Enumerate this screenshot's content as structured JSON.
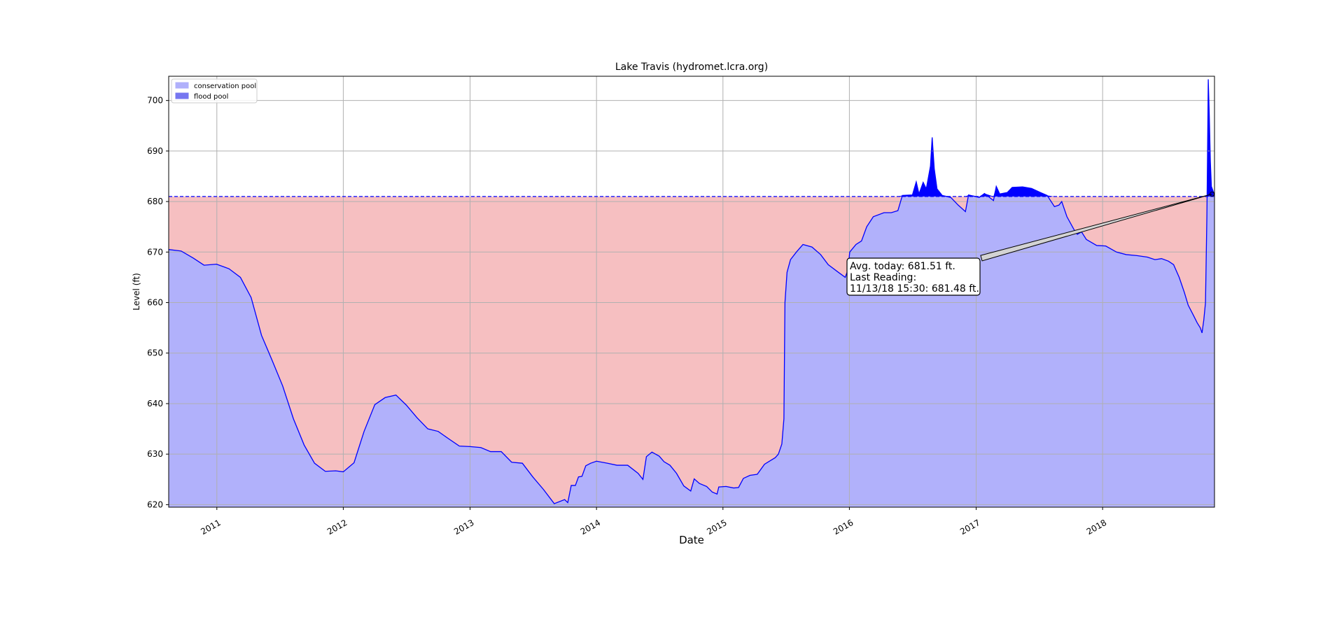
{
  "chart_data": {
    "type": "area",
    "title": "Lake Travis (hydromet.lcra.org)",
    "xlabel": "Date",
    "ylabel": "Level (ft)",
    "ylim": [
      619.5,
      704.8
    ],
    "xlim": [
      "2010-08-15",
      "2018-11-20"
    ],
    "y_ticks": [
      620,
      630,
      640,
      650,
      660,
      670,
      680,
      690,
      700
    ],
    "x_ticks": [
      "2011",
      "2012",
      "2013",
      "2014",
      "2015",
      "2016",
      "2017",
      "2018"
    ],
    "grid": true,
    "legend_position": "upper left",
    "legend": [
      {
        "label": "conservation pool",
        "color": "#b0b0fb"
      },
      {
        "label": "flood pool",
        "color": "#7676f0"
      }
    ],
    "conservation_pool_level": 681,
    "colors": {
      "below_full_fill": "#f6bfc1",
      "level_fill": "#b1b1fb",
      "flood_fill": "#0000ff",
      "line": "#0000ff",
      "reference_line": "#0000ff",
      "grid": "#b0b0b0"
    },
    "annotation": {
      "lines": [
        "Avg. today: 681.51 ft.",
        "Last Reading:",
        "11/13/18 15:30: 681.48 ft."
      ],
      "target": {
        "date": "2018-11-13",
        "level": 681.48
      }
    },
    "series": [
      {
        "name": "Level",
        "points": [
          [
            "2010-08-15",
            670.5
          ],
          [
            "2010-09-20",
            670.2
          ],
          [
            "2010-10-25",
            668.8
          ],
          [
            "2010-11-25",
            667.4
          ],
          [
            "2010-12-31",
            667.6
          ],
          [
            "2011-02-05",
            666.7
          ],
          [
            "2011-03-10",
            665.0
          ],
          [
            "2011-04-10",
            661.0
          ],
          [
            "2011-05-10",
            653.5
          ],
          [
            "2011-06-10",
            648.5
          ],
          [
            "2011-07-10",
            643.5
          ],
          [
            "2011-08-10",
            637.0
          ],
          [
            "2011-09-10",
            631.8
          ],
          [
            "2011-10-10",
            628.2
          ],
          [
            "2011-11-10",
            626.6
          ],
          [
            "2011-12-10",
            626.7
          ],
          [
            "2012-01-01",
            626.5
          ],
          [
            "2012-02-01",
            628.3
          ],
          [
            "2012-03-01",
            634.5
          ],
          [
            "2012-04-01",
            639.8
          ],
          [
            "2012-05-01",
            641.2
          ],
          [
            "2012-06-01",
            641.7
          ],
          [
            "2012-07-01",
            639.7
          ],
          [
            "2012-08-01",
            637.2
          ],
          [
            "2012-09-01",
            635.0
          ],
          [
            "2012-10-01",
            634.5
          ],
          [
            "2012-11-01",
            633.0
          ],
          [
            "2012-12-01",
            631.6
          ],
          [
            "2013-01-01",
            631.5
          ],
          [
            "2013-02-01",
            631.3
          ],
          [
            "2013-03-01",
            630.5
          ],
          [
            "2013-04-01",
            630.5
          ],
          [
            "2013-05-01",
            628.4
          ],
          [
            "2013-06-01",
            628.2
          ],
          [
            "2013-07-01",
            625.5
          ],
          [
            "2013-08-01",
            623.0
          ],
          [
            "2013-09-01",
            620.2
          ],
          [
            "2013-10-01",
            621.0
          ],
          [
            "2013-10-10",
            620.4
          ],
          [
            "2013-10-20",
            623.8
          ],
          [
            "2013-11-01",
            623.8
          ],
          [
            "2013-11-10",
            625.5
          ],
          [
            "2013-11-20",
            625.6
          ],
          [
            "2013-12-01",
            627.7
          ],
          [
            "2013-12-15",
            628.2
          ],
          [
            "2014-01-01",
            628.6
          ],
          [
            "2014-02-01",
            628.2
          ],
          [
            "2014-03-01",
            627.8
          ],
          [
            "2014-04-01",
            627.8
          ],
          [
            "2014-05-01",
            626.2
          ],
          [
            "2014-05-15",
            625.0
          ],
          [
            "2014-05-25",
            629.5
          ],
          [
            "2014-06-10",
            630.4
          ],
          [
            "2014-07-01",
            629.6
          ],
          [
            "2014-07-15",
            628.5
          ],
          [
            "2014-08-01",
            627.8
          ],
          [
            "2014-08-20",
            626.2
          ],
          [
            "2014-09-10",
            623.7
          ],
          [
            "2014-09-30",
            622.7
          ],
          [
            "2014-10-10",
            625.1
          ],
          [
            "2014-10-25",
            624.2
          ],
          [
            "2014-11-15",
            623.6
          ],
          [
            "2014-12-01",
            622.5
          ],
          [
            "2014-12-15",
            622.1
          ],
          [
            "2014-12-20",
            623.5
          ],
          [
            "2015-01-10",
            623.6
          ],
          [
            "2015-02-01",
            623.3
          ],
          [
            "2015-02-15",
            623.4
          ],
          [
            "2015-03-01",
            625.2
          ],
          [
            "2015-03-20",
            625.8
          ],
          [
            "2015-04-10",
            626.0
          ],
          [
            "2015-05-01",
            628.0
          ],
          [
            "2015-05-20",
            628.8
          ],
          [
            "2015-06-01",
            629.3
          ],
          [
            "2015-06-10",
            630.0
          ],
          [
            "2015-06-20",
            632.0
          ],
          [
            "2015-06-26",
            637.0
          ],
          [
            "2015-06-29",
            660.0
          ],
          [
            "2015-07-05",
            666.0
          ],
          [
            "2015-07-15",
            668.5
          ],
          [
            "2015-08-01",
            670.0
          ],
          [
            "2015-08-20",
            671.5
          ],
          [
            "2015-09-15",
            671.0
          ],
          [
            "2015-10-10",
            669.5
          ],
          [
            "2015-11-01",
            667.5
          ],
          [
            "2015-11-30",
            666.0
          ],
          [
            "2015-12-20",
            665.0
          ],
          [
            "2015-12-28",
            666.5
          ],
          [
            "2016-01-02",
            670.0
          ],
          [
            "2016-01-20",
            671.5
          ],
          [
            "2016-02-05",
            672.2
          ],
          [
            "2016-02-20",
            675.0
          ],
          [
            "2016-03-10",
            677.0
          ],
          [
            "2016-04-10",
            677.8
          ],
          [
            "2016-05-01",
            677.8
          ],
          [
            "2016-05-20",
            678.2
          ],
          [
            "2016-06-02",
            681.2
          ],
          [
            "2016-07-01",
            681.3
          ],
          [
            "2016-07-12",
            683.9
          ],
          [
            "2016-07-20",
            681.5
          ],
          [
            "2016-08-01",
            683.8
          ],
          [
            "2016-08-10",
            682.5
          ],
          [
            "2016-08-22",
            687.0
          ],
          [
            "2016-08-27",
            692.7
          ],
          [
            "2016-09-02",
            686.5
          ],
          [
            "2016-09-10",
            682.5
          ],
          [
            "2016-09-25",
            681.2
          ],
          [
            "2016-10-20",
            680.8
          ],
          [
            "2016-11-10",
            679.3
          ],
          [
            "2016-12-01",
            678.0
          ],
          [
            "2016-12-10",
            681.3
          ],
          [
            "2017-01-10",
            680.8
          ],
          [
            "2017-01-25",
            681.6
          ],
          [
            "2017-02-20",
            680.2
          ],
          [
            "2017-02-28",
            683.0
          ],
          [
            "2017-03-10",
            681.5
          ],
          [
            "2017-04-01",
            681.8
          ],
          [
            "2017-04-15",
            682.8
          ],
          [
            "2017-05-15",
            682.9
          ],
          [
            "2017-06-10",
            682.6
          ],
          [
            "2017-07-05",
            681.8
          ],
          [
            "2017-07-25",
            681.2
          ],
          [
            "2017-08-15",
            679.0
          ],
          [
            "2017-08-28",
            679.3
          ],
          [
            "2017-09-05",
            680.0
          ],
          [
            "2017-09-20",
            677.0
          ],
          [
            "2017-10-10",
            674.5
          ],
          [
            "2017-10-20",
            673.5
          ],
          [
            "2017-11-01",
            674.0
          ],
          [
            "2017-11-15",
            672.5
          ],
          [
            "2017-12-15",
            671.3
          ],
          [
            "2018-01-10",
            671.2
          ],
          [
            "2018-02-10",
            670.0
          ],
          [
            "2018-03-10",
            669.5
          ],
          [
            "2018-04-10",
            669.3
          ],
          [
            "2018-05-10",
            669.0
          ],
          [
            "2018-06-01",
            668.5
          ],
          [
            "2018-06-20",
            668.7
          ],
          [
            "2018-07-10",
            668.2
          ],
          [
            "2018-07-25",
            667.5
          ],
          [
            "2018-08-10",
            665.0
          ],
          [
            "2018-08-25",
            662.0
          ],
          [
            "2018-09-05",
            659.5
          ],
          [
            "2018-09-20",
            657.5
          ],
          [
            "2018-10-01",
            656.0
          ],
          [
            "2018-10-10",
            655.0
          ],
          [
            "2018-10-15",
            654.0
          ],
          [
            "2018-10-20",
            656.5
          ],
          [
            "2018-10-25",
            660.0
          ],
          [
            "2018-10-29",
            677.0
          ],
          [
            "2018-10-31",
            690.0
          ],
          [
            "2018-11-02",
            704.2
          ],
          [
            "2018-11-05",
            697.0
          ],
          [
            "2018-11-08",
            688.0
          ],
          [
            "2018-11-11",
            683.0
          ],
          [
            "2018-11-20",
            681.3
          ]
        ]
      }
    ]
  }
}
